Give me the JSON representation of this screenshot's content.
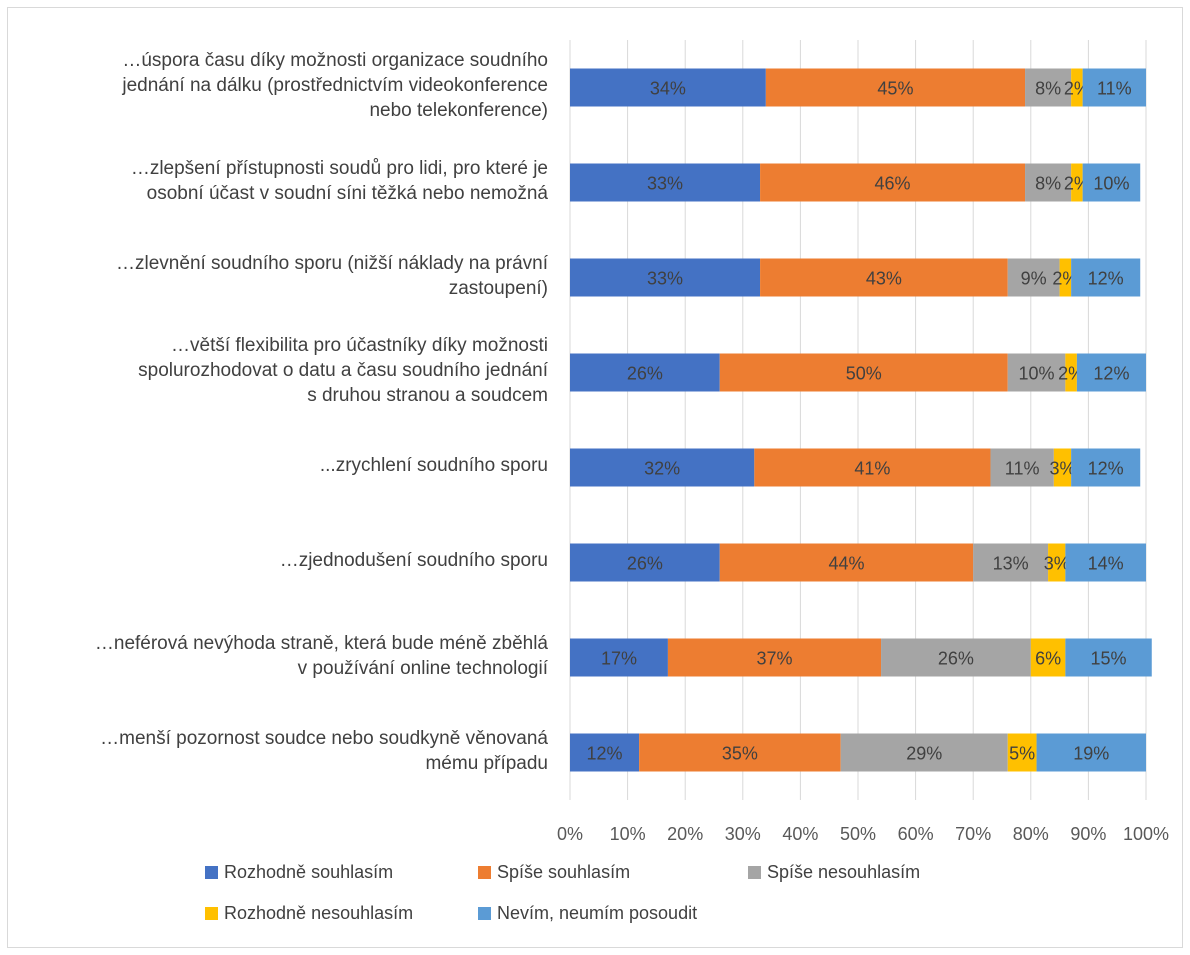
{
  "chart_data": {
    "type": "bar",
    "orientation": "horizontal",
    "stacked": "100%",
    "categories": [
      "…úspora času díky možnosti organizace soudního jednání na dálku (prostřednictvím videokonference nebo telekonference)",
      "…zlepšení přístupnosti soudů pro lidi, pro které je osobní účast v soudní síni těžká nebo nemožná",
      "…zlevnění soudního sporu (nižší náklady na právní zastoupení)",
      "…větší flexibilita pro účastníky díky možnosti spolurozhodovat o datu a času soudního jednání s druhou stranou a soudcem",
      "...zrychlení soudního sporu",
      "…zjednodušení soudního sporu",
      "…neférová nevýhoda straně, která bude méně zběhlá v používání online technologií",
      "…menší pozornost soudce nebo soudkyně věnovaná mému případu"
    ],
    "category_lines": [
      [
        "…úspora času díky možnosti organizace soudního",
        "jednání na dálku (prostřednictvím videokonference",
        "nebo telekonference)"
      ],
      [
        "…zlepšení přístupnosti soudů pro lidi, pro které je",
        "osobní účast v soudní síni těžká nebo nemožná"
      ],
      [
        "…zlevnění soudního sporu (nižší náklady na právní",
        "zastoupení)"
      ],
      [
        "…větší flexibilita pro účastníky díky možnosti",
        "spolurozhodovat o datu a času soudního jednání",
        "s druhou stranou a soudcem"
      ],
      [
        "...zrychlení soudního sporu"
      ],
      [
        "…zjednodušení soudního sporu"
      ],
      [
        "…neférová nevýhoda straně, která bude méně zběhlá",
        "v používání online technologií"
      ],
      [
        "…menší pozornost soudce nebo soudkyně věnovaná",
        "mému případu"
      ]
    ],
    "series": [
      {
        "name": "Rozhodně souhlasím",
        "color": "#4472C4",
        "values": [
          34,
          33,
          33,
          26,
          32,
          26,
          17,
          12
        ]
      },
      {
        "name": "Spíše souhlasím",
        "color": "#ED7D31",
        "values": [
          45,
          46,
          43,
          50,
          41,
          44,
          37,
          35
        ]
      },
      {
        "name": "Spíše nesouhlasím",
        "color": "#A5A5A5",
        "values": [
          8,
          8,
          9,
          10,
          11,
          13,
          26,
          29
        ]
      },
      {
        "name": "Rozhodně nesouhlasím",
        "color": "#FFC000",
        "values": [
          2,
          2,
          2,
          2,
          3,
          3,
          6,
          5
        ]
      },
      {
        "name": "Nevím, neumím posoudit",
        "color": "#5B9BD5",
        "values": [
          11,
          10,
          12,
          12,
          12,
          14,
          15,
          19
        ]
      }
    ],
    "data_labels": [
      [
        "34%",
        "45%",
        "8%",
        "2%",
        "11%"
      ],
      [
        "33%",
        "46%",
        "8%",
        "2%",
        "10%"
      ],
      [
        "33%",
        "43%",
        "9%",
        "2%",
        "12%"
      ],
      [
        "26%",
        "50%",
        "10%",
        "2%",
        "12%"
      ],
      [
        "32%",
        "41%",
        "11%",
        "3%",
        "12%"
      ],
      [
        "26%",
        "44%",
        "13%",
        "3%",
        "14%"
      ],
      [
        "17%",
        "37%",
        "26%",
        "6%",
        "15%"
      ],
      [
        "12%",
        "35%",
        "29%",
        "5%",
        "19%"
      ]
    ],
    "xlim": [
      0,
      100
    ],
    "xticks": [
      "0%",
      "10%",
      "20%",
      "30%",
      "40%",
      "50%",
      "60%",
      "70%",
      "80%",
      "90%",
      "100%"
    ],
    "grid": "vertical",
    "legend_position": "bottom"
  }
}
